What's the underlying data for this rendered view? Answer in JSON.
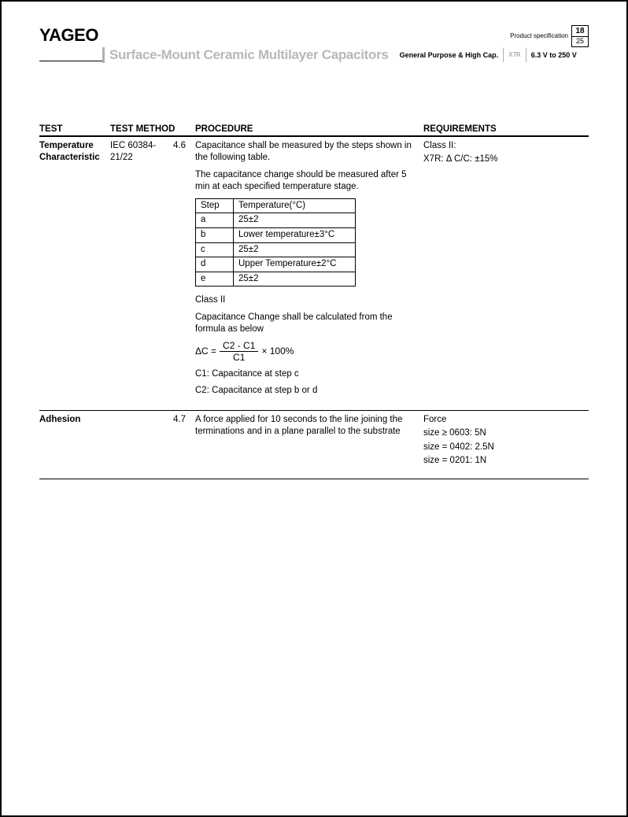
{
  "header": {
    "logo": "YAGEO",
    "product_spec_label": "Product specification",
    "page_current": "18",
    "page_total": "25",
    "main_title": "Surface-Mount Ceramic Multilayer Capacitors",
    "sub1": "General Purpose & High Cap.",
    "sub2": "X7R",
    "sub3": "6.3 V to 250 V"
  },
  "table": {
    "headers": {
      "test": "TEST",
      "method": "TEST METHOD",
      "procedure": "PROCEDURE",
      "requirements": "REQUIREMENTS"
    },
    "rows": [
      {
        "test": "Temperature Characteristic",
        "method": "IEC 60384-21/22",
        "num": "4.6",
        "proc_p1": "Capacitance shall be measured by the steps shown in the following table.",
        "proc_p2": "The capacitance change should be measured after 5 min at each specified temperature stage.",
        "step_header_step": "Step",
        "step_header_temp": "Temperature(°C)",
        "steps": [
          {
            "step": "a",
            "temp": "25±2"
          },
          {
            "step": "b",
            "temp": "Lower temperature±3°C"
          },
          {
            "step": "c",
            "temp": "25±2"
          },
          {
            "step": "d",
            "temp": "Upper Temperature±2°C"
          },
          {
            "step": "e",
            "temp": "25±2"
          }
        ],
        "proc_p3": "Class II",
        "proc_p4": "Capacitance Change shall be calculated from the formula as below",
        "formula_lhs": "ΔC =",
        "formula_top": "C2 - C1",
        "formula_bot": "C1",
        "formula_rhs": "× 100%",
        "proc_p5": "C1: Capacitance at step c",
        "proc_p6": "C2: Capacitance at step b or d",
        "req_p1": "Class II:",
        "req_p2": "X7R: Δ C/C: ±15%"
      },
      {
        "test": "Adhesion",
        "method": "",
        "num": "4.7",
        "proc_p1": "A force applied for 10 seconds to the line joining the terminations and in a plane parallel to the substrate",
        "req_p1": "Force",
        "req_p2": "size ≥ 0603: 5N",
        "req_p3": "size = 0402: 2.5N",
        "req_p4": "size = 0201: 1N"
      }
    ]
  }
}
